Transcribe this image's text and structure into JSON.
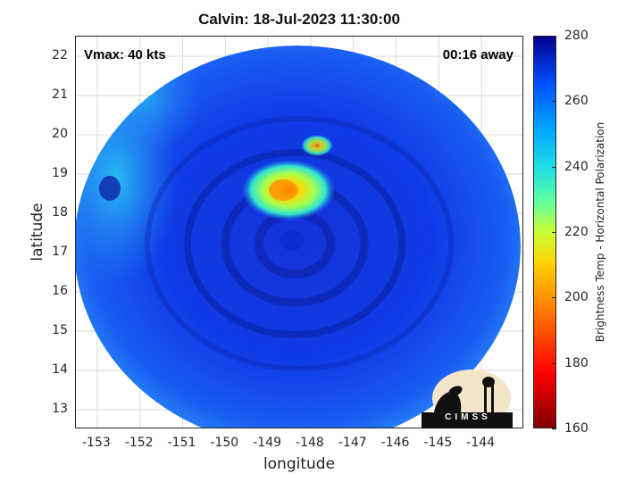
{
  "title": "Calvin: 18-Jul-2023 11:30:00",
  "annotations": {
    "vmax": "Vmax: 40 kts",
    "time_away": "00:16 away"
  },
  "map": {
    "xlabel": "longitude",
    "ylabel": "latitude",
    "xlim": [
      -153.5,
      -143.0
    ],
    "ylim": [
      12.5,
      22.5
    ],
    "x_ticks": [
      "-153",
      "-152",
      "-151",
      "-150",
      "-149",
      "-148",
      "-147",
      "-146",
      "-145",
      "-144"
    ],
    "y_ticks": [
      "13",
      "14",
      "15",
      "16",
      "17",
      "18",
      "19",
      "20",
      "21",
      "22"
    ],
    "grid": true,
    "background_colorscale_min_color": "#0a2ee8",
    "cold_spot_center": {
      "lon": -148.7,
      "lat": 18.6
    },
    "ring_center": {
      "lon": -148.5,
      "lat": 17.4
    }
  },
  "colorbar": {
    "title": "Brightness Temp - Horizontal Polarization",
    "ticks": [
      "280",
      "260",
      "240",
      "220",
      "200",
      "180",
      "160"
    ],
    "range": [
      160,
      280
    ],
    "colormap": "jet"
  },
  "logo": {
    "text": "CIMSS"
  }
}
